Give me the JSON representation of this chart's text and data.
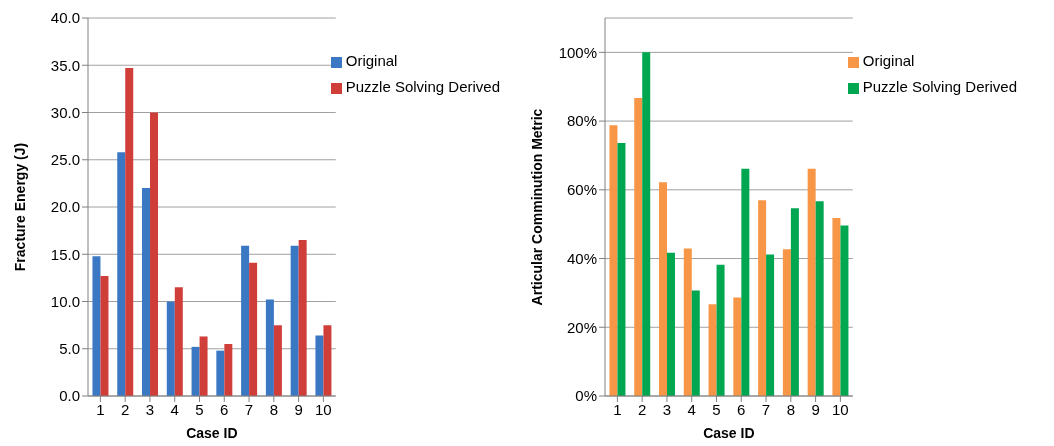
{
  "chart_data": [
    {
      "type": "bar",
      "xlabel": "Case ID",
      "ylabel": "Fracture Energy (J)",
      "categories": [
        "1",
        "2",
        "3",
        "4",
        "5",
        "6",
        "7",
        "8",
        "9",
        "10"
      ],
      "series": [
        {
          "name": "Original",
          "color": "#3b78c4",
          "values": [
            14.8,
            25.8,
            22.0,
            10.0,
            5.2,
            4.8,
            15.9,
            10.2,
            15.9,
            6.4
          ]
        },
        {
          "name": "Puzzle Solving Derived",
          "color": "#d03e3a",
          "values": [
            12.7,
            34.7,
            30.0,
            11.5,
            6.3,
            5.5,
            14.1,
            7.5,
            16.5,
            7.5
          ]
        }
      ],
      "ylim": [
        0,
        40
      ],
      "yticks": [
        {
          "value": 0,
          "label": "0.0"
        },
        {
          "value": 5,
          "label": "5.0"
        },
        {
          "value": 10,
          "label": "10.0"
        },
        {
          "value": 15,
          "label": "15.0"
        },
        {
          "value": 20,
          "label": "20.0"
        },
        {
          "value": 25,
          "label": "25.0"
        },
        {
          "value": 30,
          "label": "30.0"
        },
        {
          "value": 35,
          "label": "35.0"
        },
        {
          "value": 40,
          "label": "40.0"
        }
      ],
      "grid": "y",
      "legend": "top right"
    },
    {
      "type": "bar",
      "xlabel": "Case ID",
      "ylabel": "Articular Comminution Metric",
      "categories": [
        "1",
        "2",
        "3",
        "4",
        "5",
        "6",
        "7",
        "8",
        "9",
        "10"
      ],
      "series": [
        {
          "name": "Original",
          "color": "#f79646",
          "values": [
            78.8,
            86.7,
            62.2,
            42.9,
            26.7,
            28.7,
            57.0,
            42.7,
            66.1,
            51.8
          ]
        },
        {
          "name": "Puzzle Solving Derived",
          "color": "#00a650",
          "values": [
            73.6,
            100,
            41.7,
            30.7,
            38.2,
            66.1,
            41.2,
            54.6,
            56.7,
            49.6
          ]
        }
      ],
      "ylim": [
        0,
        110
      ],
      "yticks": [
        {
          "value": 0,
          "label": "0%"
        },
        {
          "value": 20,
          "label": "20%"
        },
        {
          "value": 40,
          "label": "40%"
        },
        {
          "value": 60,
          "label": "60%"
        },
        {
          "value": 80,
          "label": "80%"
        },
        {
          "value": 100,
          "label": "100%"
        }
      ],
      "grid": "y",
      "legend": "top right"
    }
  ]
}
